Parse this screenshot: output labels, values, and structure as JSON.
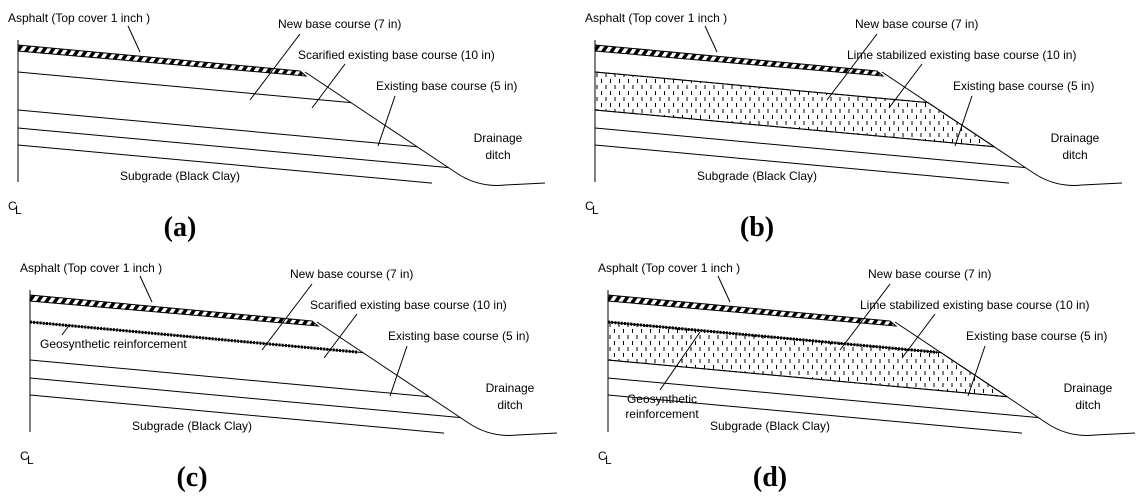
{
  "panels": [
    {
      "label": "(a)",
      "asphalt": "Asphalt (Top cover 1 inch )",
      "new_base": "New base course (7 in)",
      "middle": "Scarified existing base course (10 in)",
      "existing": "Existing base course (5 in)",
      "drainage": [
        "Drainage",
        "ditch"
      ],
      "subgrade": "Subgrade (Black Clay)",
      "centerline": {
        "main": "C",
        "sub": "L"
      }
    },
    {
      "label": "(b)",
      "asphalt": "Asphalt (Top cover 1 inch )",
      "new_base": "New base course (7 in)",
      "middle": "Lime stabilized existing base course (10 in)",
      "existing": "Existing base course (5 in)",
      "drainage": [
        "Drainage",
        "ditch"
      ],
      "subgrade": "Subgrade (Black Clay)",
      "centerline": {
        "main": "C",
        "sub": "L"
      }
    },
    {
      "label": "(c)",
      "asphalt": "Asphalt (Top cover 1 inch )",
      "new_base": "New base course (7 in)",
      "middle": "Scarified existing base course (10 in)",
      "existing": "Existing base course (5 in)",
      "drainage": [
        "Drainage",
        "ditch"
      ],
      "subgrade": "Subgrade (Black Clay)",
      "centerline": {
        "main": "C",
        "sub": "L"
      },
      "geosynthetic": [
        "Geosynthetic reinforcement"
      ]
    },
    {
      "label": "(d)",
      "asphalt": "Asphalt (Top cover 1 inch )",
      "new_base": "New base course (7 in)",
      "middle": "Lime stabilized existing base course (10 in)",
      "existing": "Existing base course (5 in)",
      "drainage": [
        "Drainage",
        "ditch"
      ],
      "subgrade": "Subgrade (Black Clay)",
      "centerline": {
        "main": "C",
        "sub": "L"
      },
      "geosynthetic": [
        "Geosynthetic",
        "reinforcement"
      ]
    }
  ]
}
